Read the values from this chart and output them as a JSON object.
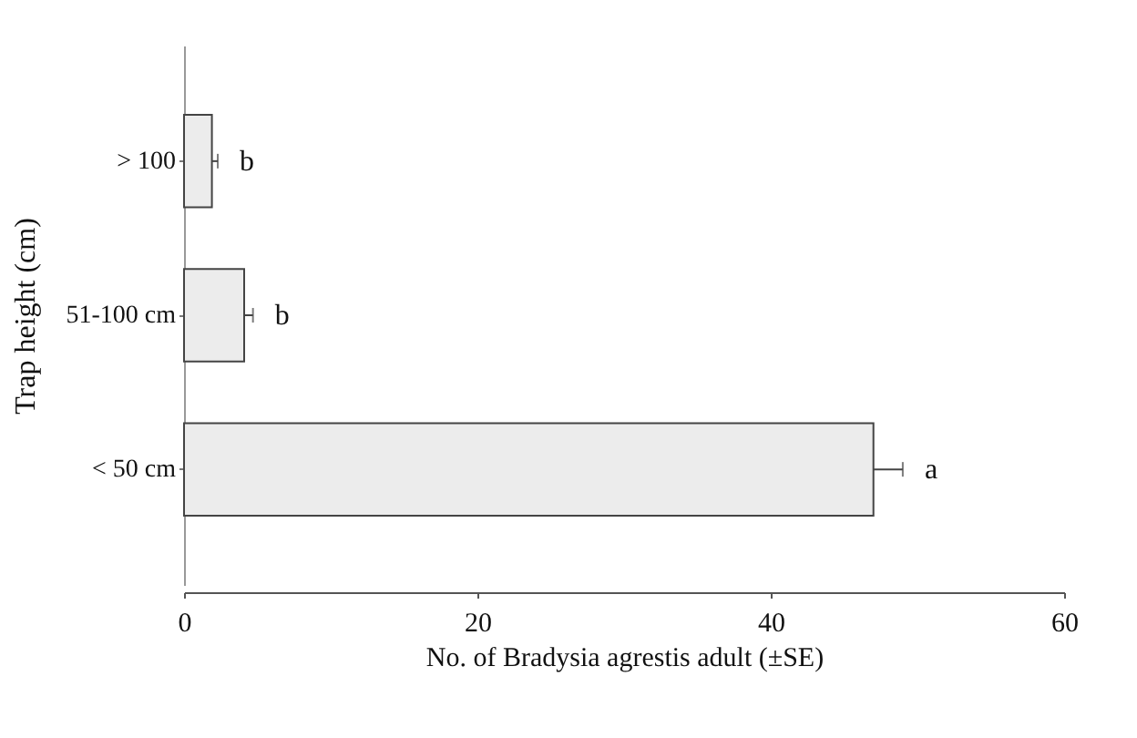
{
  "chart_data": {
    "type": "bar",
    "orientation": "horizontal",
    "categories": [
      "> 100",
      "51-100 cm",
      "< 50 cm"
    ],
    "values": [
      1.9,
      4.1,
      47
    ],
    "errors": [
      0.4,
      0.6,
      2
    ],
    "color": "#ececec",
    "xlim": [
      0,
      60
    ],
    "xticks": [
      0,
      20,
      40,
      60
    ],
    "xlabel": "No. of Bradysia agrestis adult (±SE)",
    "ylabel": "Trap height (cm)",
    "annotations": [
      "b",
      "b",
      "a"
    ],
    "grid": false
  }
}
